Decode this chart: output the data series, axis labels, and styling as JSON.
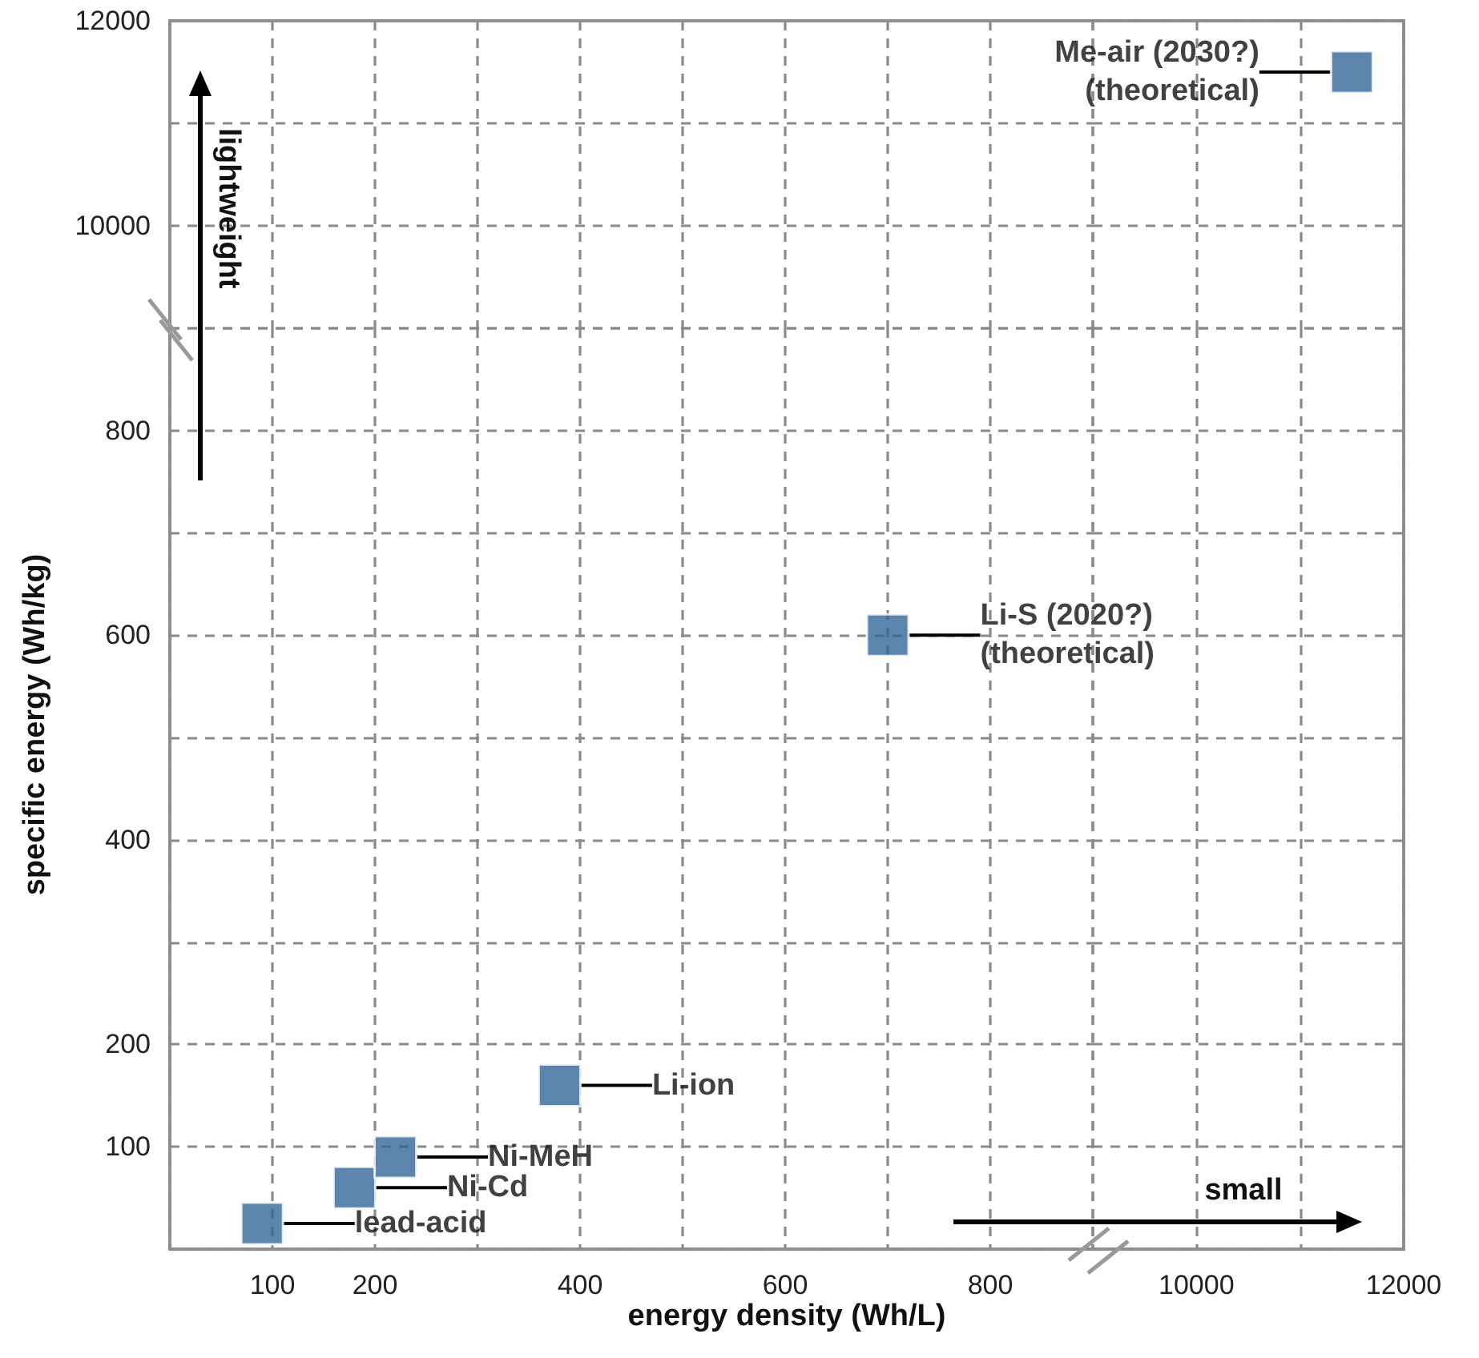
{
  "chart_data": [
    {
      "type": "scatter",
      "xlim": [
        0,
        900
      ],
      "ylim": [
        9000,
        12000
      ],
      "yticks": [
        {
          "value": 9000,
          "label": null
        },
        10000,
        {
          "value": 11000,
          "label": null
        },
        12000
      ],
      "tick_labels": "y",
      "grid": true,
      "annotations": [
        "lightweight"
      ]
    },
    {
      "type": "scatter",
      "xlim": [
        9000,
        12000
      ],
      "ylim": [
        9000,
        12000
      ],
      "tick_labels": false,
      "grid": true,
      "marker": "square",
      "series": [
        {
          "name": "Me-air (2030?)\n(theoretical)",
          "color": "#33679a",
          "x": [
            11500
          ],
          "values": [
            11500
          ]
        }
      ]
    },
    {
      "type": "scatter",
      "xlim": [
        0,
        900
      ],
      "ylim": [
        0,
        900
      ],
      "xticks": [
        100,
        200,
        {
          "value": 300,
          "label": null
        },
        400,
        {
          "value": 500,
          "label": null
        },
        600,
        {
          "value": 700,
          "label": null
        },
        800
      ],
      "yticks": [
        100,
        200,
        {
          "value": 300,
          "label": null
        },
        400,
        {
          "value": 500,
          "label": null
        },
        600,
        {
          "value": 700,
          "label": null
        },
        800
      ],
      "grid": true,
      "marker": "square",
      "xlabel": "energy density (Wh/L)",
      "ylabel": "specific energy (Wh/kg)",
      "series": [
        {
          "name": "lead-acid",
          "color": "#33679a",
          "x": [
            90
          ],
          "values": [
            25
          ]
        },
        {
          "name": "Ni-Cd",
          "color": "#33679a",
          "x": [
            180
          ],
          "values": [
            60
          ]
        },
        {
          "name": "Ni-MeH",
          "color": "#33679a",
          "x": [
            220
          ],
          "values": [
            90
          ]
        },
        {
          "name": "Li-ion",
          "color": "#33679a",
          "x": [
            380
          ],
          "values": [
            160
          ]
        },
        {
          "name": "Li-S (2020?)\n(theoretical)",
          "color": "#33679a",
          "x": [
            700
          ],
          "values": [
            600
          ]
        }
      ]
    },
    {
      "type": "scatter",
      "xlim": [
        9000,
        12000
      ],
      "ylim": [
        0,
        900
      ],
      "xticks": [
        {
          "value": 9000,
          "label": null
        },
        10000,
        {
          "value": 11000,
          "label": null
        },
        12000
      ],
      "tick_labels": "x",
      "grid": true,
      "annotations": [
        "small"
      ]
    }
  ]
}
